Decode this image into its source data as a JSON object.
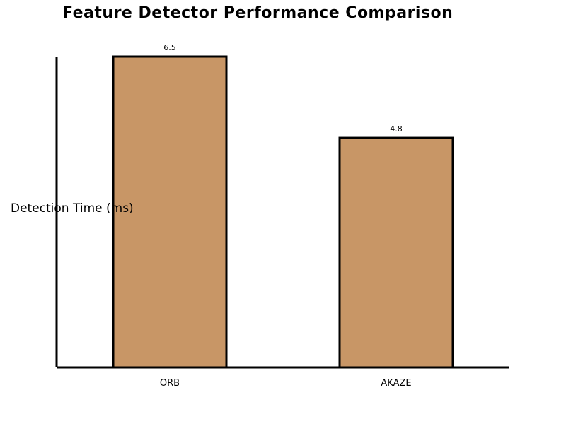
{
  "chart_data": {
    "type": "bar",
    "title": "Feature Detector Performance Comparison",
    "xlabel": "",
    "ylabel": "Detection Time (ms)",
    "categories": [
      "ORB",
      "AKAZE"
    ],
    "values": [
      6.5,
      4.8
    ],
    "value_labels": [
      "6.5",
      "4.8"
    ],
    "ylim": [
      0,
      6.5
    ],
    "grid": false,
    "legend": "none",
    "colors": {
      "bar_fill": "#C89666",
      "bar_stroke": "#000000",
      "axis": "#000000"
    }
  }
}
